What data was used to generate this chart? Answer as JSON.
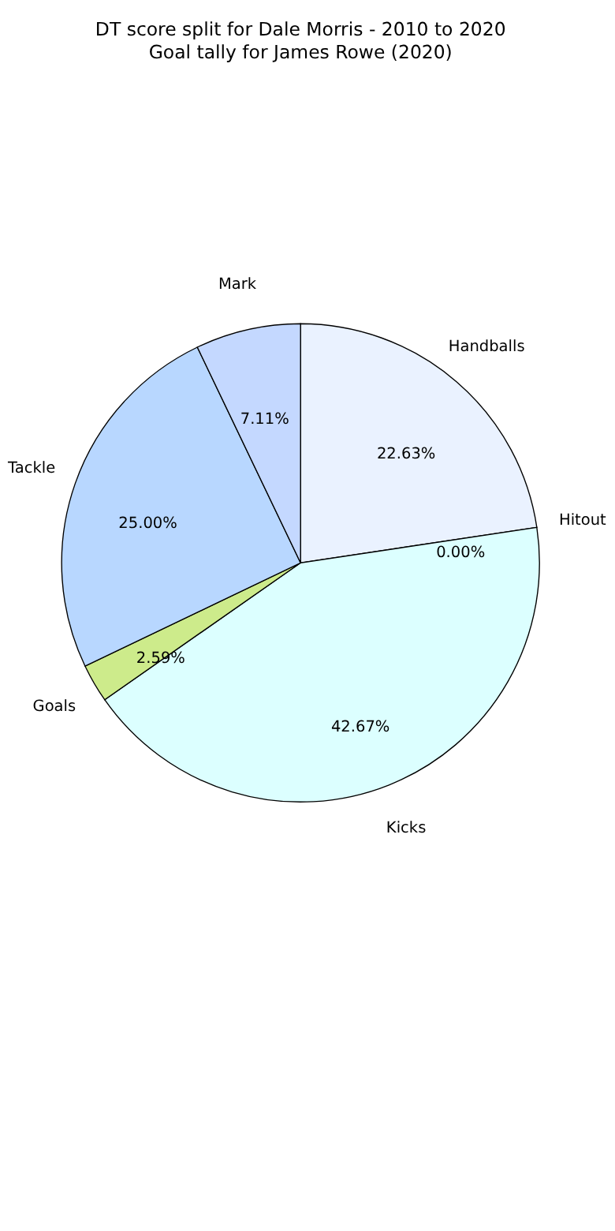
{
  "chart_data": {
    "type": "pie",
    "title": "DT score split for Dale Morris - 2010 to 2020",
    "subtitle": "Goal tally for James Rowe (2020)",
    "categories": [
      "Handballs",
      "Hitout",
      "Kicks",
      "Goals",
      "Tackle",
      "Mark"
    ],
    "values": [
      22.63,
      0.0,
      42.67,
      2.59,
      25.0,
      7.11
    ],
    "value_labels": [
      "22.63%",
      "0.00%",
      "42.67%",
      "2.59%",
      "25.00%",
      "7.11%"
    ],
    "colors": [
      "#eaf2ff",
      "#e6e6ff",
      "#dcffff",
      "#cdeb8b",
      "#b8d7ff",
      "#c4d8ff"
    ],
    "legend": false
  }
}
